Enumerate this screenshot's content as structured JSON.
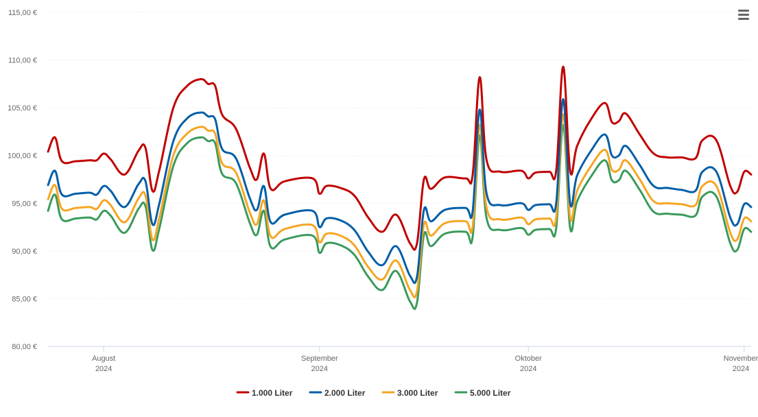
{
  "colors": {
    "series": [
      "#c00000",
      "#005ea8",
      "#f5a623",
      "#3a9a5b"
    ],
    "grid": "#e6e6e6",
    "axis": "#ccd6eb",
    "text": "#666666"
  },
  "menu": {
    "icon": "hamburger-menu-icon"
  },
  "chart_data": {
    "type": "line",
    "title": "",
    "xlabel": "",
    "ylabel": "",
    "ylim": [
      80,
      115
    ],
    "grid": "horizontal",
    "legend_position": "bottom-center",
    "y_ticks": [
      "80,00 €",
      "85,00 €",
      "90,00 €",
      "95,00 €",
      "100,00 €",
      "105,00 €",
      "110,00 €",
      "115,00 €"
    ],
    "y_tick_values": [
      80,
      85,
      90,
      95,
      100,
      105,
      110,
      115
    ],
    "x_ticks": [
      {
        "date": "2024-08-01",
        "month": "August",
        "year": "2024"
      },
      {
        "date": "2024-09-01",
        "month": "September",
        "year": "2024"
      },
      {
        "date": "2024-10-01",
        "month": "Oktober",
        "year": "2024"
      },
      {
        "date": "2024-11-01",
        "month": "November",
        "year": "2024"
      }
    ],
    "x_range": [
      "2024-07-24",
      "2024-11-02"
    ],
    "series": [
      {
        "name": "1.000 Liter",
        "points": [
          [
            "2024-07-24",
            100.4
          ],
          [
            "2024-07-25",
            101.9
          ],
          [
            "2024-07-26",
            99.4
          ],
          [
            "2024-07-28",
            99.4
          ],
          [
            "2024-07-30",
            99.5
          ],
          [
            "2024-07-31",
            99.5
          ],
          [
            "2024-08-01",
            100.2
          ],
          [
            "2024-08-02",
            99.6
          ],
          [
            "2024-08-04",
            98.0
          ],
          [
            "2024-08-06",
            100.5
          ],
          [
            "2024-08-07",
            100.8
          ],
          [
            "2024-08-08",
            96.3
          ],
          [
            "2024-08-09",
            98.5
          ],
          [
            "2024-08-11",
            105.0
          ],
          [
            "2024-08-13",
            107.3
          ],
          [
            "2024-08-15",
            108.0
          ],
          [
            "2024-08-16",
            107.5
          ],
          [
            "2024-08-17",
            107.3
          ],
          [
            "2024-08-18",
            104.3
          ],
          [
            "2024-08-20",
            102.8
          ],
          [
            "2024-08-22",
            98.7
          ],
          [
            "2024-08-23",
            97.5
          ],
          [
            "2024-08-24",
            100.2
          ],
          [
            "2024-08-25",
            96.5
          ],
          [
            "2024-08-27",
            97.3
          ],
          [
            "2024-08-31",
            97.6
          ],
          [
            "2024-09-01",
            96.0
          ],
          [
            "2024-09-02",
            96.8
          ],
          [
            "2024-09-04",
            96.6
          ],
          [
            "2024-09-06",
            95.8
          ],
          [
            "2024-09-08",
            93.5
          ],
          [
            "2024-09-10",
            92.0
          ],
          [
            "2024-09-12",
            93.8
          ],
          [
            "2024-09-14",
            90.8
          ],
          [
            "2024-09-15",
            90.8
          ],
          [
            "2024-09-16",
            97.5
          ],
          [
            "2024-09-17",
            96.5
          ],
          [
            "2024-09-19",
            97.7
          ],
          [
            "2024-09-22",
            97.6
          ],
          [
            "2024-09-23",
            98.0
          ],
          [
            "2024-09-24",
            108.2
          ],
          [
            "2024-09-25",
            99.5
          ],
          [
            "2024-09-27",
            98.3
          ],
          [
            "2024-09-30",
            98.4
          ],
          [
            "2024-10-01",
            97.6
          ],
          [
            "2024-10-02",
            98.2
          ],
          [
            "2024-10-04",
            98.3
          ],
          [
            "2024-10-05",
            98.4
          ],
          [
            "2024-10-06",
            109.3
          ],
          [
            "2024-10-07",
            98.4
          ],
          [
            "2024-10-08",
            101.0
          ],
          [
            "2024-10-10",
            103.8
          ],
          [
            "2024-10-12",
            105.5
          ],
          [
            "2024-10-13",
            103.5
          ],
          [
            "2024-10-14",
            103.6
          ],
          [
            "2024-10-15",
            104.4
          ],
          [
            "2024-10-17",
            102.2
          ],
          [
            "2024-10-19",
            100.2
          ],
          [
            "2024-10-21",
            99.8
          ],
          [
            "2024-10-23",
            99.8
          ],
          [
            "2024-10-25",
            99.7
          ],
          [
            "2024-10-26",
            101.6
          ],
          [
            "2024-10-28",
            101.6
          ],
          [
            "2024-10-30",
            96.8
          ],
          [
            "2024-10-31",
            96.2
          ],
          [
            "2024-11-01",
            98.3
          ],
          [
            "2024-11-02",
            98.0
          ]
        ]
      },
      {
        "name": "2.000 Liter",
        "points": [
          [
            "2024-07-24",
            96.9
          ],
          [
            "2024-07-25",
            98.4
          ],
          [
            "2024-07-26",
            95.9
          ],
          [
            "2024-07-28",
            96.0
          ],
          [
            "2024-07-30",
            96.1
          ],
          [
            "2024-07-31",
            95.9
          ],
          [
            "2024-08-01",
            96.8
          ],
          [
            "2024-08-02",
            96.3
          ],
          [
            "2024-08-04",
            94.6
          ],
          [
            "2024-08-06",
            97.0
          ],
          [
            "2024-08-07",
            97.3
          ],
          [
            "2024-08-08",
            92.8
          ],
          [
            "2024-08-09",
            95.0
          ],
          [
            "2024-08-11",
            101.5
          ],
          [
            "2024-08-13",
            103.9
          ],
          [
            "2024-08-15",
            104.5
          ],
          [
            "2024-08-16",
            104.1
          ],
          [
            "2024-08-17",
            103.8
          ],
          [
            "2024-08-18",
            100.7
          ],
          [
            "2024-08-20",
            99.7
          ],
          [
            "2024-08-22",
            95.5
          ],
          [
            "2024-08-23",
            94.3
          ],
          [
            "2024-08-24",
            96.8
          ],
          [
            "2024-08-25",
            93.0
          ],
          [
            "2024-08-27",
            93.8
          ],
          [
            "2024-08-31",
            94.2
          ],
          [
            "2024-09-01",
            92.5
          ],
          [
            "2024-09-02",
            93.4
          ],
          [
            "2024-09-04",
            93.2
          ],
          [
            "2024-09-06",
            92.2
          ],
          [
            "2024-09-08",
            89.9
          ],
          [
            "2024-09-10",
            88.5
          ],
          [
            "2024-09-12",
            90.5
          ],
          [
            "2024-09-14",
            87.4
          ],
          [
            "2024-09-15",
            87.3
          ],
          [
            "2024-09-16",
            94.3
          ],
          [
            "2024-09-17",
            93.1
          ],
          [
            "2024-09-19",
            94.3
          ],
          [
            "2024-09-22",
            94.5
          ],
          [
            "2024-09-23",
            94.2
          ],
          [
            "2024-09-24",
            104.8
          ],
          [
            "2024-09-25",
            96.0
          ],
          [
            "2024-09-27",
            94.8
          ],
          [
            "2024-09-30",
            95.0
          ],
          [
            "2024-10-01",
            94.3
          ],
          [
            "2024-10-02",
            94.8
          ],
          [
            "2024-10-04",
            94.9
          ],
          [
            "2024-10-05",
            95.0
          ],
          [
            "2024-10-06",
            105.9
          ],
          [
            "2024-10-07",
            95.0
          ],
          [
            "2024-10-08",
            97.9
          ],
          [
            "2024-10-10",
            100.5
          ],
          [
            "2024-10-12",
            102.2
          ],
          [
            "2024-10-13",
            100.0
          ],
          [
            "2024-10-14",
            100.0
          ],
          [
            "2024-10-15",
            101.0
          ],
          [
            "2024-10-17",
            99.0
          ],
          [
            "2024-10-19",
            96.8
          ],
          [
            "2024-10-21",
            96.6
          ],
          [
            "2024-10-23",
            96.4
          ],
          [
            "2024-10-25",
            96.3
          ],
          [
            "2024-10-26",
            98.3
          ],
          [
            "2024-10-28",
            98.3
          ],
          [
            "2024-10-30",
            93.5
          ],
          [
            "2024-10-31",
            92.8
          ],
          [
            "2024-11-01",
            94.9
          ],
          [
            "2024-11-02",
            94.6
          ]
        ]
      },
      {
        "name": "3.000 Liter",
        "points": [
          [
            "2024-07-24",
            95.4
          ],
          [
            "2024-07-25",
            96.9
          ],
          [
            "2024-07-26",
            94.4
          ],
          [
            "2024-07-28",
            94.5
          ],
          [
            "2024-07-30",
            94.6
          ],
          [
            "2024-07-31",
            94.4
          ],
          [
            "2024-08-01",
            95.3
          ],
          [
            "2024-08-02",
            94.8
          ],
          [
            "2024-08-04",
            93.0
          ],
          [
            "2024-08-06",
            95.5
          ],
          [
            "2024-08-07",
            95.8
          ],
          [
            "2024-08-08",
            91.2
          ],
          [
            "2024-08-09",
            93.5
          ],
          [
            "2024-08-11",
            100.0
          ],
          [
            "2024-08-13",
            102.3
          ],
          [
            "2024-08-15",
            103.0
          ],
          [
            "2024-08-16",
            102.6
          ],
          [
            "2024-08-17",
            102.3
          ],
          [
            "2024-08-18",
            99.2
          ],
          [
            "2024-08-20",
            98.2
          ],
          [
            "2024-08-22",
            94.0
          ],
          [
            "2024-08-23",
            92.8
          ],
          [
            "2024-08-24",
            95.3
          ],
          [
            "2024-08-25",
            91.5
          ],
          [
            "2024-08-27",
            92.3
          ],
          [
            "2024-08-31",
            92.7
          ],
          [
            "2024-09-01",
            90.9
          ],
          [
            "2024-09-02",
            91.8
          ],
          [
            "2024-09-04",
            91.6
          ],
          [
            "2024-09-06",
            90.6
          ],
          [
            "2024-09-08",
            88.3
          ],
          [
            "2024-09-10",
            87.0
          ],
          [
            "2024-09-12",
            89.0
          ],
          [
            "2024-09-14",
            85.9
          ],
          [
            "2024-09-15",
            85.8
          ],
          [
            "2024-09-16",
            92.8
          ],
          [
            "2024-09-17",
            91.6
          ],
          [
            "2024-09-19",
            92.9
          ],
          [
            "2024-09-22",
            93.1
          ],
          [
            "2024-09-23",
            92.6
          ],
          [
            "2024-09-24",
            103.2
          ],
          [
            "2024-09-25",
            94.5
          ],
          [
            "2024-09-27",
            93.3
          ],
          [
            "2024-09-30",
            93.5
          ],
          [
            "2024-10-01",
            92.8
          ],
          [
            "2024-10-02",
            93.3
          ],
          [
            "2024-10-04",
            93.4
          ],
          [
            "2024-10-05",
            93.5
          ],
          [
            "2024-10-06",
            104.3
          ],
          [
            "2024-10-07",
            93.5
          ],
          [
            "2024-10-08",
            96.3
          ],
          [
            "2024-10-10",
            98.9
          ],
          [
            "2024-10-12",
            100.6
          ],
          [
            "2024-10-13",
            98.5
          ],
          [
            "2024-10-14",
            98.5
          ],
          [
            "2024-10-15",
            99.5
          ],
          [
            "2024-10-17",
            97.5
          ],
          [
            "2024-10-19",
            95.2
          ],
          [
            "2024-10-21",
            95.0
          ],
          [
            "2024-10-23",
            94.9
          ],
          [
            "2024-10-25",
            94.8
          ],
          [
            "2024-10-26",
            96.8
          ],
          [
            "2024-10-28",
            96.8
          ],
          [
            "2024-10-30",
            91.9
          ],
          [
            "2024-10-31",
            91.2
          ],
          [
            "2024-11-01",
            93.4
          ],
          [
            "2024-11-02",
            93.1
          ]
        ]
      },
      {
        "name": "5.000 Liter",
        "points": [
          [
            "2024-07-24",
            94.2
          ],
          [
            "2024-07-25",
            95.9
          ],
          [
            "2024-07-26",
            93.3
          ],
          [
            "2024-07-28",
            93.4
          ],
          [
            "2024-07-30",
            93.5
          ],
          [
            "2024-07-31",
            93.3
          ],
          [
            "2024-08-01",
            94.2
          ],
          [
            "2024-08-02",
            93.7
          ],
          [
            "2024-08-04",
            91.9
          ],
          [
            "2024-08-06",
            94.4
          ],
          [
            "2024-08-07",
            94.7
          ],
          [
            "2024-08-08",
            90.1
          ],
          [
            "2024-08-09",
            92.4
          ],
          [
            "2024-08-11",
            98.9
          ],
          [
            "2024-08-13",
            101.3
          ],
          [
            "2024-08-15",
            101.9
          ],
          [
            "2024-08-16",
            101.5
          ],
          [
            "2024-08-17",
            101.3
          ],
          [
            "2024-08-18",
            98.1
          ],
          [
            "2024-08-20",
            97.1
          ],
          [
            "2024-08-22",
            92.9
          ],
          [
            "2024-08-23",
            91.7
          ],
          [
            "2024-08-24",
            94.2
          ],
          [
            "2024-08-25",
            90.4
          ],
          [
            "2024-08-27",
            91.2
          ],
          [
            "2024-08-31",
            91.6
          ],
          [
            "2024-09-01",
            89.8
          ],
          [
            "2024-09-02",
            90.8
          ],
          [
            "2024-09-04",
            90.6
          ],
          [
            "2024-09-06",
            89.6
          ],
          [
            "2024-09-08",
            87.3
          ],
          [
            "2024-09-10",
            85.9
          ],
          [
            "2024-09-12",
            87.9
          ],
          [
            "2024-09-14",
            84.7
          ],
          [
            "2024-09-15",
            84.6
          ],
          [
            "2024-09-16",
            91.7
          ],
          [
            "2024-09-17",
            90.5
          ],
          [
            "2024-09-19",
            91.8
          ],
          [
            "2024-09-22",
            92.0
          ],
          [
            "2024-09-23",
            91.5
          ],
          [
            "2024-09-24",
            102.1
          ],
          [
            "2024-09-25",
            93.4
          ],
          [
            "2024-09-27",
            92.2
          ],
          [
            "2024-09-30",
            92.4
          ],
          [
            "2024-10-01",
            91.7
          ],
          [
            "2024-10-02",
            92.2
          ],
          [
            "2024-10-04",
            92.3
          ],
          [
            "2024-10-05",
            92.4
          ],
          [
            "2024-10-06",
            103.2
          ],
          [
            "2024-10-07",
            92.4
          ],
          [
            "2024-10-08",
            95.2
          ],
          [
            "2024-10-10",
            97.8
          ],
          [
            "2024-10-12",
            99.5
          ],
          [
            "2024-10-13",
            97.4
          ],
          [
            "2024-10-14",
            97.4
          ],
          [
            "2024-10-15",
            98.4
          ],
          [
            "2024-10-17",
            96.4
          ],
          [
            "2024-10-19",
            94.1
          ],
          [
            "2024-10-21",
            93.9
          ],
          [
            "2024-10-23",
            93.8
          ],
          [
            "2024-10-25",
            93.7
          ],
          [
            "2024-10-26",
            95.7
          ],
          [
            "2024-10-28",
            95.7
          ],
          [
            "2024-10-30",
            90.8
          ],
          [
            "2024-10-31",
            90.1
          ],
          [
            "2024-11-01",
            92.3
          ],
          [
            "2024-11-02",
            92.0
          ]
        ]
      }
    ]
  }
}
